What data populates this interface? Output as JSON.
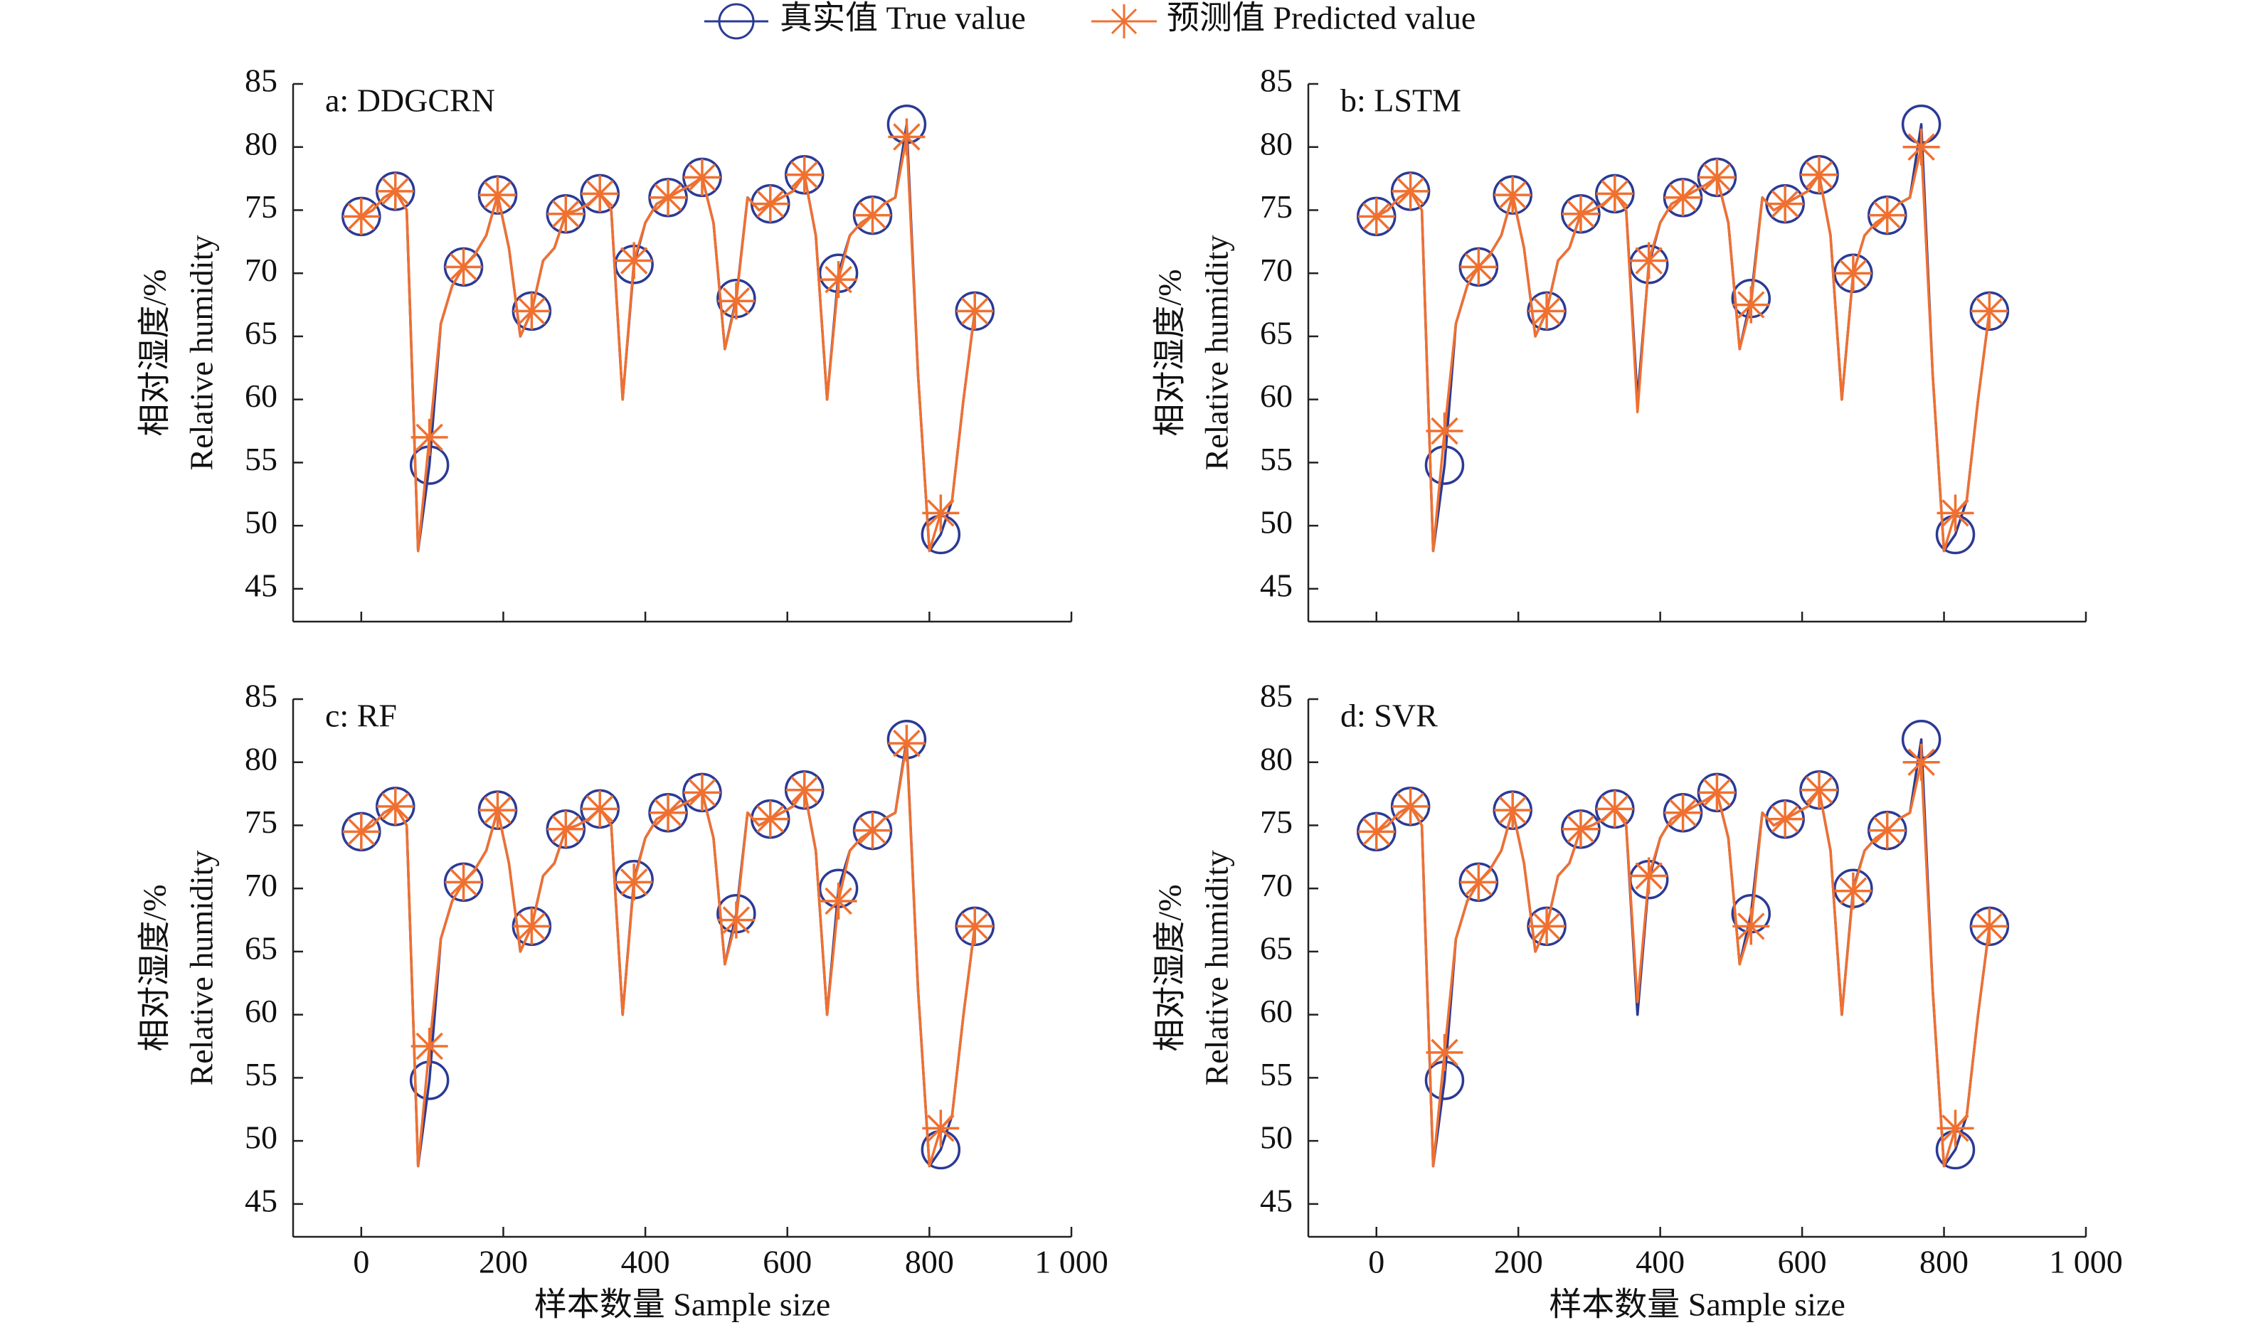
{
  "legend_position": "top",
  "chart_data": [
    {
      "type": "line",
      "title": "a: DDGCRN",
      "ylabel": [
        "相对湿度/%",
        "Relative humidity"
      ],
      "x": [
        0,
        16,
        32,
        48,
        64,
        80,
        96,
        112,
        128,
        144,
        160,
        176,
        192,
        208,
        224,
        240,
        256,
        272,
        288,
        304,
        320,
        336,
        352,
        368,
        384,
        400,
        416,
        432,
        448,
        464,
        480,
        496,
        512,
        528,
        544,
        560,
        576,
        592,
        608,
        624,
        640,
        656,
        672,
        688,
        704,
        720,
        736,
        752,
        768,
        784,
        800,
        816,
        832,
        848,
        864
      ],
      "series": [
        {
          "name": "真实值 True value",
          "color": "#2b3a94",
          "marker": "circle",
          "markevery": 3,
          "values": [
            74.5,
            75,
            76,
            76.5,
            75,
            48,
            54.8,
            66,
            69,
            70.5,
            71.5,
            73,
            76.2,
            72,
            65,
            67,
            71,
            72,
            74.7,
            75,
            75.5,
            76.3,
            75,
            60,
            70.7,
            74,
            75.5,
            76,
            76.5,
            77,
            77.6,
            74,
            64,
            68,
            76,
            75,
            75.5,
            76,
            76.5,
            77.8,
            73,
            60,
            70,
            73,
            74,
            74.6,
            75.5,
            76,
            81.8,
            62,
            48,
            49.3,
            52,
            60,
            67
          ]
        },
        {
          "name": "预测值 Predicted value",
          "color": "#f07030",
          "marker": "star",
          "markevery": 3,
          "values": [
            74.5,
            75,
            76,
            76.5,
            75,
            48,
            57,
            66,
            69,
            70.5,
            71.5,
            73,
            76.2,
            72,
            65,
            67,
            71,
            72,
            74.7,
            75,
            75.5,
            76.3,
            75,
            60,
            71,
            74,
            75.5,
            76,
            76.5,
            77,
            77.6,
            74,
            64,
            67.8,
            76,
            75,
            75.5,
            76,
            76.5,
            77.8,
            73,
            60,
            69.5,
            73,
            74,
            74.6,
            75.5,
            76,
            80.8,
            62,
            48,
            51,
            52,
            60,
            67
          ]
        }
      ],
      "xlim": [
        -96,
        1000
      ],
      "xticks": [
        0,
        200,
        400,
        600,
        800,
        {
          "value": 1000,
          "label": "1 000"
        }
      ],
      "show_xticklabels": false,
      "ylim": [
        42.4,
        85
      ],
      "yticks": [
        45,
        50,
        55,
        60,
        65,
        70,
        75,
        80,
        85
      ]
    },
    {
      "type": "line",
      "title": "b: LSTM",
      "ylabel": [
        "相对湿度/%",
        "Relative humidity"
      ],
      "x": [
        0,
        16,
        32,
        48,
        64,
        80,
        96,
        112,
        128,
        144,
        160,
        176,
        192,
        208,
        224,
        240,
        256,
        272,
        288,
        304,
        320,
        336,
        352,
        368,
        384,
        400,
        416,
        432,
        448,
        464,
        480,
        496,
        512,
        528,
        544,
        560,
        576,
        592,
        608,
        624,
        640,
        656,
        672,
        688,
        704,
        720,
        736,
        752,
        768,
        784,
        800,
        816,
        832,
        848,
        864
      ],
      "series": [
        {
          "name": "真实值 True value",
          "color": "#2b3a94",
          "marker": "circle",
          "markevery": 3,
          "values": [
            74.5,
            75,
            76,
            76.5,
            75,
            48,
            54.8,
            66,
            69,
            70.5,
            71.5,
            73,
            76.2,
            72,
            65,
            67,
            71,
            72,
            74.7,
            75,
            75.5,
            76.3,
            75,
            60,
            70.7,
            74,
            75.5,
            76,
            76.5,
            77,
            77.6,
            74,
            64,
            68,
            76,
            75,
            75.5,
            76,
            76.5,
            77.8,
            73,
            60,
            70,
            73,
            74,
            74.6,
            75.5,
            76,
            81.8,
            62,
            48,
            49.3,
            52,
            60,
            67
          ]
        },
        {
          "name": "预测值 Predicted value",
          "color": "#f07030",
          "marker": "star",
          "markevery": 3,
          "values": [
            74.5,
            75,
            76,
            76.5,
            75,
            48,
            57.5,
            66,
            69,
            70.5,
            71.5,
            73,
            76.2,
            72,
            65,
            67,
            71,
            72,
            74.7,
            75,
            75.5,
            76.3,
            75,
            59,
            71,
            74,
            75.5,
            76,
            76.5,
            77,
            77.6,
            74,
            64,
            67.5,
            76,
            75,
            75.5,
            76,
            76.5,
            77.8,
            73,
            60,
            70,
            73,
            74,
            74.6,
            75.5,
            76,
            80,
            62,
            48,
            51,
            52,
            60,
            67
          ]
        }
      ],
      "xlim": [
        -96,
        1000
      ],
      "xticks": [
        0,
        200,
        400,
        600,
        800,
        {
          "value": 1000,
          "label": "1 000"
        }
      ],
      "show_xticklabels": false,
      "ylim": [
        42.4,
        85
      ],
      "yticks": [
        45,
        50,
        55,
        60,
        65,
        70,
        75,
        80,
        85
      ]
    },
    {
      "type": "line",
      "title": "c: RF",
      "ylabel": [
        "相对湿度/%",
        "Relative humidity"
      ],
      "xlabel": "样本数量 Sample size",
      "x": [
        0,
        16,
        32,
        48,
        64,
        80,
        96,
        112,
        128,
        144,
        160,
        176,
        192,
        208,
        224,
        240,
        256,
        272,
        288,
        304,
        320,
        336,
        352,
        368,
        384,
        400,
        416,
        432,
        448,
        464,
        480,
        496,
        512,
        528,
        544,
        560,
        576,
        592,
        608,
        624,
        640,
        656,
        672,
        688,
        704,
        720,
        736,
        752,
        768,
        784,
        800,
        816,
        832,
        848,
        864
      ],
      "series": [
        {
          "name": "真实值 True value",
          "color": "#2b3a94",
          "marker": "circle",
          "markevery": 3,
          "values": [
            74.5,
            75,
            76,
            76.5,
            75,
            48,
            54.8,
            66,
            69,
            70.5,
            71.5,
            73,
            76.2,
            72,
            65,
            67,
            71,
            72,
            74.7,
            75,
            75.5,
            76.3,
            75,
            60,
            70.7,
            74,
            75.5,
            76,
            76.5,
            77,
            77.6,
            74,
            64,
            68,
            76,
            75,
            75.5,
            76,
            76.5,
            77.8,
            73,
            60,
            70,
            73,
            74,
            74.6,
            75.5,
            76,
            81.8,
            62,
            48,
            49.3,
            52,
            60,
            67
          ]
        },
        {
          "name": "预测值 Predicted value",
          "color": "#f07030",
          "marker": "star",
          "markevery": 3,
          "values": [
            74.5,
            75,
            76,
            76.5,
            75,
            48,
            57.5,
            66,
            69,
            70.5,
            71.5,
            73,
            76.2,
            72,
            65,
            67,
            71,
            72,
            74.7,
            75,
            75.5,
            76.3,
            75,
            60,
            70.5,
            74,
            75.5,
            76,
            76.5,
            77,
            77.6,
            74,
            64,
            67.5,
            76,
            75,
            75.5,
            76,
            76.5,
            77.8,
            73,
            60,
            69,
            73,
            74,
            74.6,
            75.5,
            76,
            81.5,
            62,
            48,
            51,
            52,
            60,
            67
          ]
        }
      ],
      "xlim": [
        -96,
        1000
      ],
      "xticks": [
        0,
        200,
        400,
        600,
        800,
        {
          "value": 1000,
          "label": "1 000"
        }
      ],
      "show_xticklabels": true,
      "ylim": [
        42.4,
        85
      ],
      "yticks": [
        45,
        50,
        55,
        60,
        65,
        70,
        75,
        80,
        85
      ]
    },
    {
      "type": "line",
      "title": "d: SVR",
      "ylabel": [
        "相对湿度/%",
        "Relative humidity"
      ],
      "xlabel": "样本数量 Sample size",
      "x": [
        0,
        16,
        32,
        48,
        64,
        80,
        96,
        112,
        128,
        144,
        160,
        176,
        192,
        208,
        224,
        240,
        256,
        272,
        288,
        304,
        320,
        336,
        352,
        368,
        384,
        400,
        416,
        432,
        448,
        464,
        480,
        496,
        512,
        528,
        544,
        560,
        576,
        592,
        608,
        624,
        640,
        656,
        672,
        688,
        704,
        720,
        736,
        752,
        768,
        784,
        800,
        816,
        832,
        848,
        864
      ],
      "series": [
        {
          "name": "真实值 True value",
          "color": "#2b3a94",
          "marker": "circle",
          "markevery": 3,
          "values": [
            74.5,
            75,
            76,
            76.5,
            75,
            48,
            54.8,
            66,
            69,
            70.5,
            71.5,
            73,
            76.2,
            72,
            65,
            67,
            71,
            72,
            74.7,
            75,
            75.5,
            76.3,
            75,
            60,
            70.7,
            74,
            75.5,
            76,
            76.5,
            77,
            77.6,
            74,
            64,
            68,
            76,
            75,
            75.5,
            76,
            76.5,
            77.8,
            73,
            60,
            70,
            73,
            74,
            74.6,
            75.5,
            76,
            81.8,
            62,
            48,
            49.3,
            52,
            60,
            67
          ]
        },
        {
          "name": "预测值 Predicted value",
          "color": "#f07030",
          "marker": "star",
          "markevery": 3,
          "values": [
            74.5,
            75,
            76,
            76.5,
            75,
            48,
            57,
            66,
            69,
            70.5,
            71.5,
            73,
            76.2,
            72,
            65,
            67,
            71,
            72,
            74.7,
            75,
            75.5,
            76.3,
            75,
            61,
            71,
            74,
            75.5,
            76,
            76.5,
            77,
            77.6,
            74,
            64,
            67,
            76,
            75,
            75.5,
            76,
            76.5,
            77.8,
            73,
            60,
            69.8,
            73,
            74,
            74.6,
            75.5,
            76,
            80,
            62,
            48,
            51,
            52,
            60,
            67
          ]
        }
      ],
      "xlim": [
        -96,
        1000
      ],
      "xticks": [
        0,
        200,
        400,
        600,
        800,
        {
          "value": 1000,
          "label": "1 000"
        }
      ],
      "show_xticklabels": true,
      "ylim": [
        42.4,
        85
      ],
      "yticks": [
        45,
        50,
        55,
        60,
        65,
        70,
        75,
        80,
        85
      ]
    }
  ]
}
